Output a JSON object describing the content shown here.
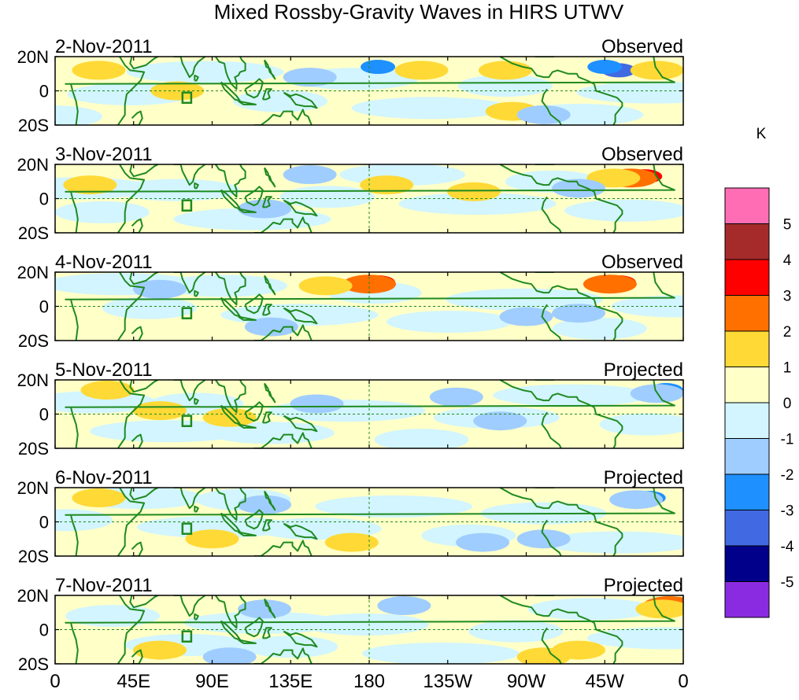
{
  "chart_data": {
    "type": "heatmap",
    "title": "Mixed Rossby-Gravity Waves in HIRS UTWV",
    "x_tick_labels": [
      "0",
      "45E",
      "90E",
      "135E",
      "180",
      "135W",
      "90W",
      "45W",
      "0"
    ],
    "x_ticks_lon": [
      0,
      45,
      90,
      135,
      180,
      225,
      270,
      315,
      360
    ],
    "y_tick_labels": [
      "20N",
      "0",
      "20S"
    ],
    "y_ticks_lat": [
      20,
      0,
      -20
    ],
    "lon_range": [
      0,
      360
    ],
    "lat_range": [
      -20,
      20
    ],
    "unit": "K",
    "colorbar": {
      "levels": [
        "5",
        "4",
        "3",
        "2",
        "1",
        "0",
        "-1",
        "-2",
        "-3",
        "-4",
        "-5"
      ],
      "colors": [
        "#ff6eb4",
        "#a52a2a",
        "#ff0000",
        "#ff7000",
        "#ffd936",
        "#ffffc8",
        "#d2f5ff",
        "#a0cdff",
        "#1e90ff",
        "#4169e1",
        "#00008b",
        "#8a2be2"
      ]
    },
    "panels": [
      {
        "date": "2-Nov-2011",
        "status": "Observed",
        "anomalies": [
          {
            "lon": 323,
            "lat": 12,
            "value": -4
          },
          {
            "lon": 315,
            "lat": 14,
            "value": -3
          },
          {
            "lon": 345,
            "lat": 12,
            "value": 1
          },
          {
            "lon": 146,
            "lat": 8,
            "value": -2
          },
          {
            "lon": 185,
            "lat": 14,
            "value": -3
          },
          {
            "lon": 210,
            "lat": 12,
            "value": 1
          },
          {
            "lon": 258,
            "lat": 12,
            "value": 1
          },
          {
            "lon": 262,
            "lat": -12,
            "value": 1
          },
          {
            "lon": 280,
            "lat": -14,
            "value": -2
          },
          {
            "lon": 25,
            "lat": 12,
            "value": 1
          },
          {
            "lon": 70,
            "lat": 0,
            "value": 1
          }
        ]
      },
      {
        "date": "3-Nov-2011",
        "status": "Observed",
        "anomalies": [
          {
            "lon": 338,
            "lat": 13,
            "value": 3
          },
          {
            "lon": 330,
            "lat": 12,
            "value": 2
          },
          {
            "lon": 320,
            "lat": 12,
            "value": 1
          },
          {
            "lon": 146,
            "lat": 14,
            "value": -2
          },
          {
            "lon": 240,
            "lat": 4,
            "value": 1
          },
          {
            "lon": 190,
            "lat": 8,
            "value": 1
          },
          {
            "lon": 120,
            "lat": -6,
            "value": -2
          },
          {
            "lon": 20,
            "lat": 8,
            "value": 1
          },
          {
            "lon": 300,
            "lat": 6,
            "value": -2
          }
        ]
      },
      {
        "date": "4-Nov-2011",
        "status": "Observed",
        "anomalies": [
          {
            "lon": 323,
            "lat": 14,
            "value": 3
          },
          {
            "lon": 318,
            "lat": 13,
            "value": 2
          },
          {
            "lon": 185,
            "lat": 14,
            "value": 3
          },
          {
            "lon": 180,
            "lat": 13,
            "value": 2
          },
          {
            "lon": 155,
            "lat": 12,
            "value": 1
          },
          {
            "lon": 270,
            "lat": -6,
            "value": -2
          },
          {
            "lon": 300,
            "lat": -4,
            "value": -2
          },
          {
            "lon": 60,
            "lat": 10,
            "value": -2
          },
          {
            "lon": 124,
            "lat": -12,
            "value": -2
          }
        ]
      },
      {
        "date": "5-Nov-2011",
        "status": "Projected",
        "anomalies": [
          {
            "lon": 350,
            "lat": 14,
            "value": -3
          },
          {
            "lon": 345,
            "lat": 12,
            "value": -2
          },
          {
            "lon": 255,
            "lat": -4,
            "value": -2
          },
          {
            "lon": 230,
            "lat": 10,
            "value": -2
          },
          {
            "lon": 150,
            "lat": 6,
            "value": -2
          },
          {
            "lon": 100,
            "lat": -2,
            "value": 1
          },
          {
            "lon": 60,
            "lat": 2,
            "value": 1
          },
          {
            "lon": 30,
            "lat": 14,
            "value": 1
          }
        ]
      },
      {
        "date": "6-Nov-2011",
        "status": "Projected",
        "anomalies": [
          {
            "lon": 340,
            "lat": 14,
            "value": -3
          },
          {
            "lon": 333,
            "lat": 13,
            "value": -2
          },
          {
            "lon": 245,
            "lat": -12,
            "value": -2
          },
          {
            "lon": 280,
            "lat": -10,
            "value": -2
          },
          {
            "lon": 120,
            "lat": 10,
            "value": -2
          },
          {
            "lon": 170,
            "lat": -12,
            "value": 1
          },
          {
            "lon": 90,
            "lat": -10,
            "value": 1
          },
          {
            "lon": 25,
            "lat": 14,
            "value": 1
          }
        ]
      },
      {
        "date": "7-Nov-2011",
        "status": "Projected",
        "anomalies": [
          {
            "lon": 352,
            "lat": 14,
            "value": 2
          },
          {
            "lon": 348,
            "lat": 12,
            "value": 1
          },
          {
            "lon": 300,
            "lat": -12,
            "value": 1
          },
          {
            "lon": 280,
            "lat": -16,
            "value": 1
          },
          {
            "lon": 200,
            "lat": 14,
            "value": -2
          },
          {
            "lon": 120,
            "lat": 12,
            "value": -2
          },
          {
            "lon": 60,
            "lat": -12,
            "value": 1
          },
          {
            "lon": 100,
            "lat": -16,
            "value": -2
          }
        ]
      }
    ]
  }
}
